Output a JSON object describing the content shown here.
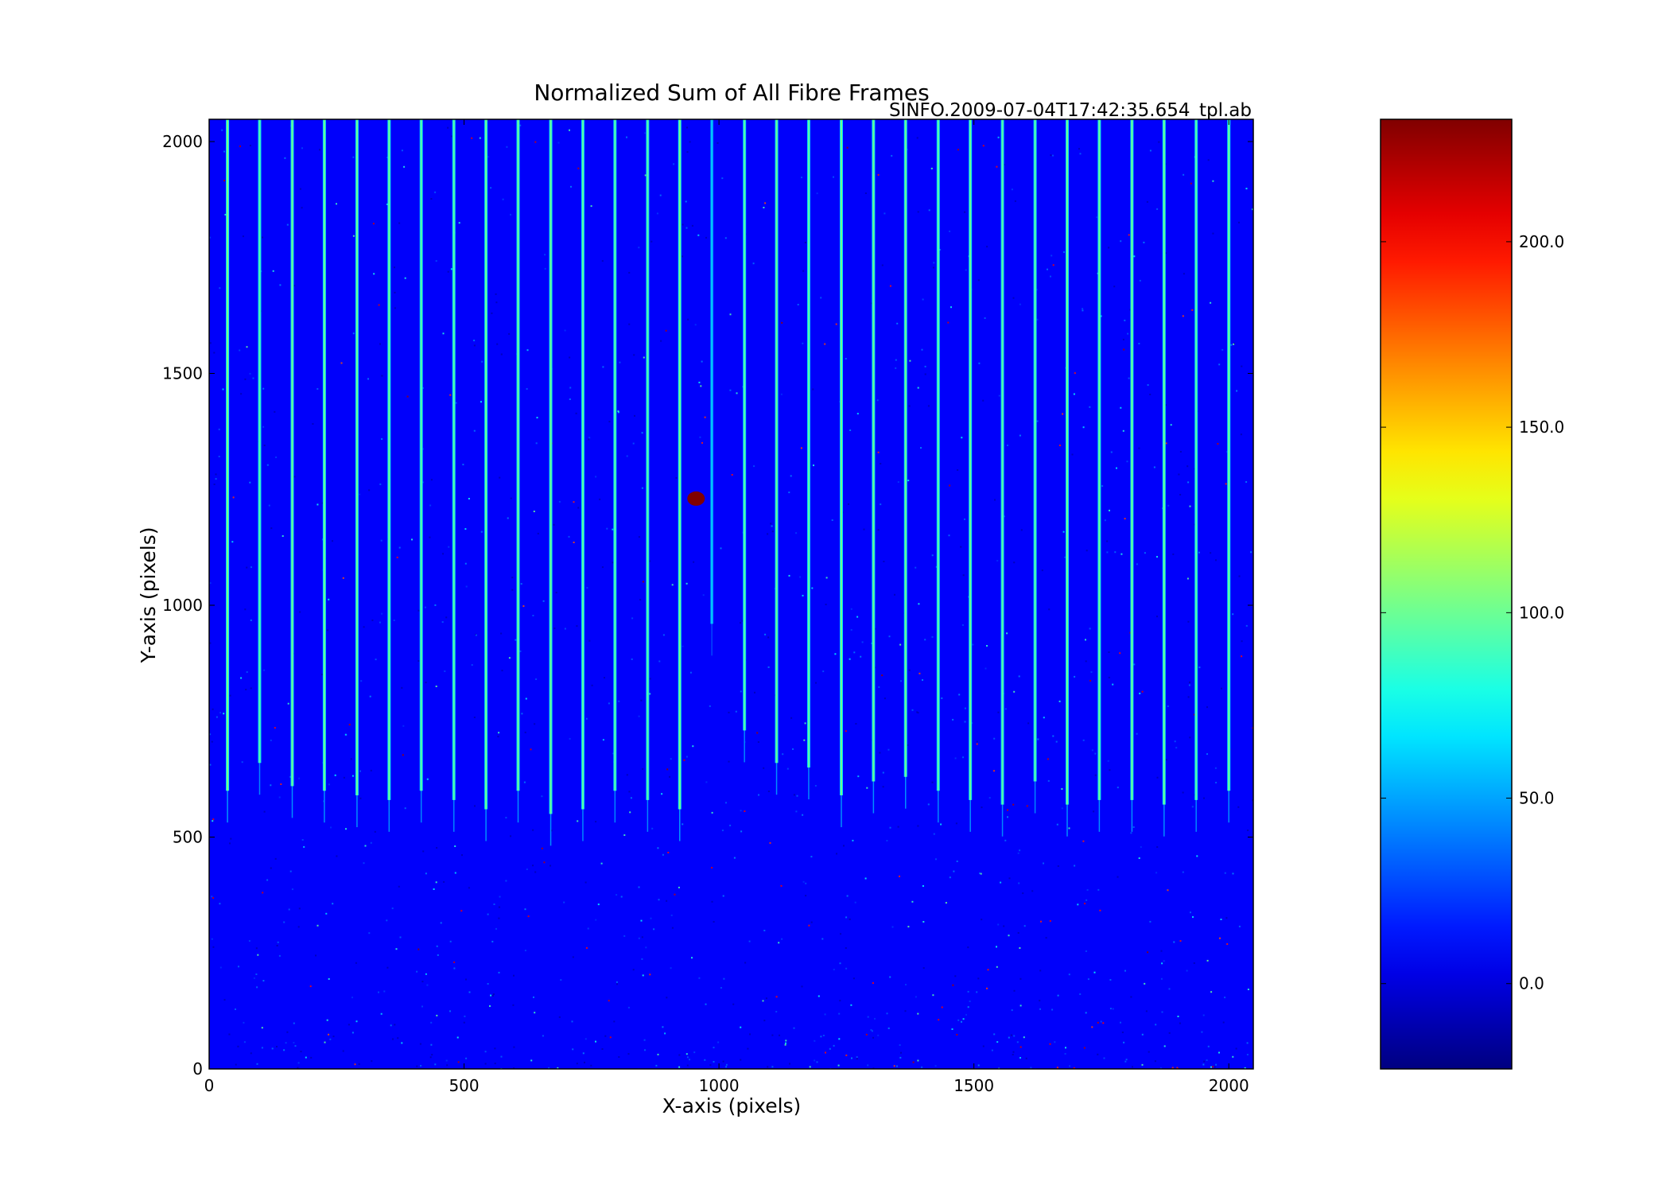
{
  "chart_data": {
    "type": "heatmap",
    "title": "Normalized Sum of All Fibre Frames",
    "subtitle": "SINFO.2009-07-04T17:42:35.654_tpl.ab",
    "xlabel": "X-axis (pixels)",
    "ylabel": "Y-axis (pixels)",
    "xlim": [
      0,
      2048
    ],
    "ylim": [
      0,
      2048
    ],
    "x_ticks": [
      0,
      500,
      1000,
      1500,
      2000
    ],
    "y_ticks": [
      0,
      500,
      1000,
      1500,
      2000
    ],
    "background_value": 8,
    "colormap": "jet",
    "colorbar": {
      "min": -23,
      "max": 233,
      "ticks": [
        "0.0",
        "50.0",
        "100.0",
        "150.0",
        "200.0"
      ],
      "tick_values": [
        0,
        50,
        100,
        150,
        200
      ]
    },
    "fibre_traces": [
      {
        "x": 36,
        "y_bottom": 600,
        "peak": 105
      },
      {
        "x": 99,
        "y_bottom": 660,
        "peak": 95
      },
      {
        "x": 163,
        "y_bottom": 610,
        "peak": 100
      },
      {
        "x": 226,
        "y_bottom": 600,
        "peak": 100
      },
      {
        "x": 290,
        "y_bottom": 590,
        "peak": 100
      },
      {
        "x": 353,
        "y_bottom": 580,
        "peak": 100
      },
      {
        "x": 416,
        "y_bottom": 600,
        "peak": 95
      },
      {
        "x": 480,
        "y_bottom": 580,
        "peak": 95
      },
      {
        "x": 543,
        "y_bottom": 560,
        "peak": 100
      },
      {
        "x": 606,
        "y_bottom": 600,
        "peak": 100
      },
      {
        "x": 670,
        "y_bottom": 550,
        "peak": 100
      },
      {
        "x": 733,
        "y_bottom": 560,
        "peak": 95
      },
      {
        "x": 796,
        "y_bottom": 600,
        "peak": 95
      },
      {
        "x": 860,
        "y_bottom": 580,
        "peak": 95
      },
      {
        "x": 923,
        "y_bottom": 560,
        "peak": 105
      },
      {
        "x": 986,
        "y_bottom": 960,
        "peak": 60
      },
      {
        "x": 1050,
        "y_bottom": 730,
        "peak": 95
      },
      {
        "x": 1113,
        "y_bottom": 660,
        "peak": 100
      },
      {
        "x": 1176,
        "y_bottom": 650,
        "peak": 95
      },
      {
        "x": 1240,
        "y_bottom": 590,
        "peak": 100
      },
      {
        "x": 1303,
        "y_bottom": 620,
        "peak": 100
      },
      {
        "x": 1366,
        "y_bottom": 630,
        "peak": 100
      },
      {
        "x": 1430,
        "y_bottom": 600,
        "peak": 95
      },
      {
        "x": 1493,
        "y_bottom": 580,
        "peak": 100
      },
      {
        "x": 1556,
        "y_bottom": 570,
        "peak": 95
      },
      {
        "x": 1620,
        "y_bottom": 620,
        "peak": 95
      },
      {
        "x": 1683,
        "y_bottom": 570,
        "peak": 100
      },
      {
        "x": 1746,
        "y_bottom": 580,
        "peak": 100
      },
      {
        "x": 1810,
        "y_bottom": 580,
        "peak": 100
      },
      {
        "x": 1873,
        "y_bottom": 570,
        "peak": 100
      },
      {
        "x": 1936,
        "y_bottom": 580,
        "peak": 95
      },
      {
        "x": 2000,
        "y_bottom": 600,
        "peak": 100
      }
    ],
    "hot_spot": {
      "x": 955,
      "y": 1230,
      "value": 233
    }
  }
}
